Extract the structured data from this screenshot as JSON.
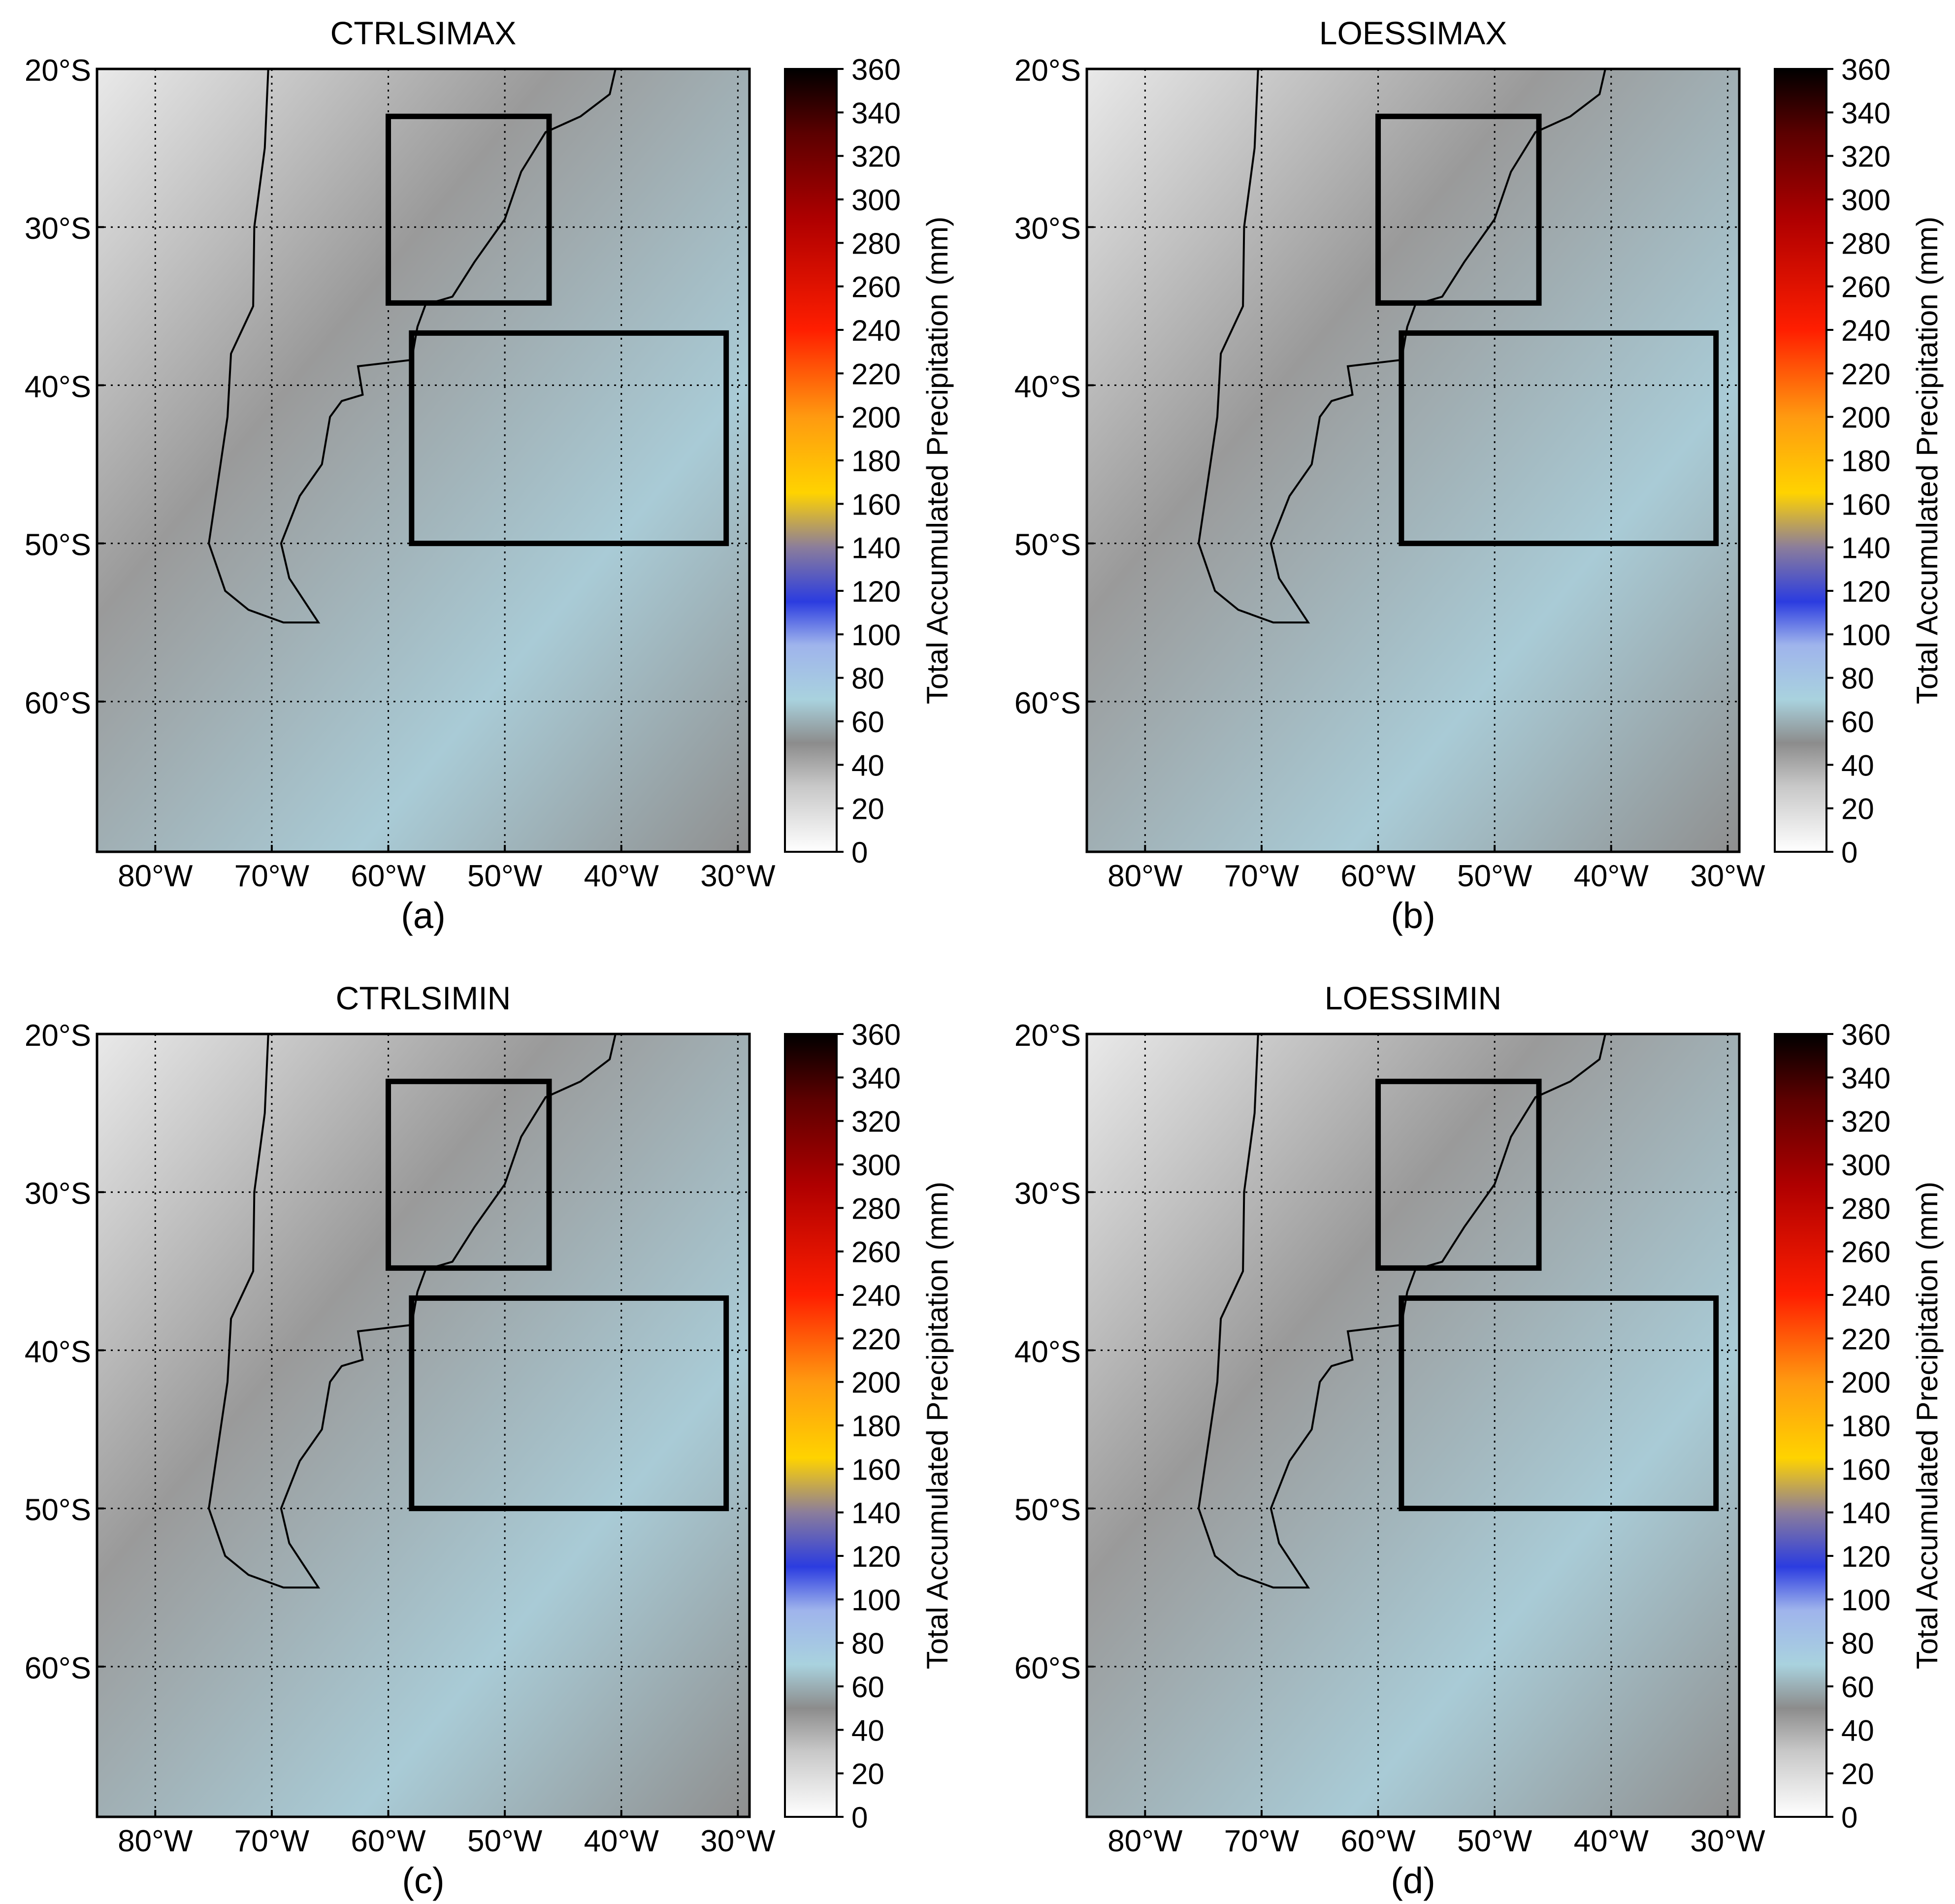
{
  "figure": {
    "colorbar": {
      "label": "Total Accumulated Precipitation  (mm)",
      "ticks": [
        "0",
        "20",
        "40",
        "60",
        "80",
        "100",
        "120",
        "140",
        "160",
        "180",
        "200",
        "220",
        "240",
        "260",
        "280",
        "300",
        "320",
        "340",
        "360"
      ],
      "vmin": 0,
      "vmax": 360,
      "colors": [
        {
          "value": 0,
          "color": "#ffffff"
        },
        {
          "value": 30,
          "color": "#c8c8c8"
        },
        {
          "value": 50,
          "color": "#8c8c8c"
        },
        {
          "value": 70,
          "color": "#a9d2de"
        },
        {
          "value": 95,
          "color": "#9fb4ec"
        },
        {
          "value": 115,
          "color": "#2b3ce0"
        },
        {
          "value": 140,
          "color": "#8b7d9b"
        },
        {
          "value": 165,
          "color": "#ffd300"
        },
        {
          "value": 200,
          "color": "#ff9a10"
        },
        {
          "value": 240,
          "color": "#ff1e00"
        },
        {
          "value": 290,
          "color": "#b00000"
        },
        {
          "value": 330,
          "color": "#5c0000"
        },
        {
          "value": 360,
          "color": "#000000"
        }
      ]
    },
    "axes": {
      "lat_ticks": [
        "20°S",
        "30°S",
        "40°S",
        "50°S",
        "60°S"
      ],
      "lon_ticks": [
        "80°W",
        "70°W",
        "60°W",
        "50°W",
        "40°W",
        "30°W"
      ]
    },
    "panels": [
      {
        "title": "CTRLSIMAX",
        "letter": "(a)"
      },
      {
        "title": "LOESSIMAX",
        "letter": "(b)"
      },
      {
        "title": "CTRLSIMIN",
        "letter": "(c)"
      },
      {
        "title": "LOESSIMIN",
        "letter": "(d)"
      }
    ]
  }
}
